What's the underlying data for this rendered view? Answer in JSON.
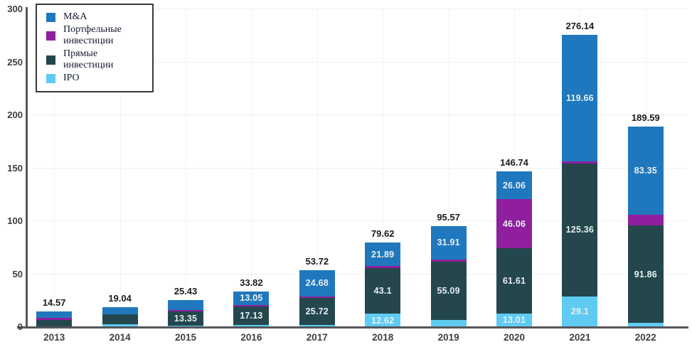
{
  "figure": {
    "background": "#ffffff",
    "axis_color": "#56575a",
    "grid_color": "#efefef",
    "tick_color": "#3d3d3d"
  },
  "legend": {
    "position": "top-left",
    "items": [
      {
        "label": "M&A",
        "color": "#1f78bd"
      },
      {
        "label": "Портфельные инвестиции",
        "color": "#8f1f9e"
      },
      {
        "label": "Прямые инвестиции",
        "color": "#24474e"
      },
      {
        "label": "IPO",
        "color": "#5fcbf3"
      }
    ]
  },
  "chart_data": {
    "type": "bar",
    "subtype": "stacked",
    "categories": [
      "2013",
      "2014",
      "2015",
      "2016",
      "2017",
      "2018",
      "2019",
      "2020",
      "2021",
      "2022"
    ],
    "series": [
      {
        "name": "IPO",
        "color": "#5fcbf3",
        "values": [
          1.0,
          2.4,
          1.3,
          2.14,
          1.72,
          12.62,
          6.5,
          13.01,
          29.1,
          4.0
        ],
        "labels": [
          null,
          null,
          null,
          null,
          null,
          "12.62",
          null,
          "13.01",
          "29.1",
          null
        ]
      },
      {
        "name": "Прямые инвестиции",
        "color": "#24474e",
        "values": [
          6.0,
          9.6,
          13.35,
          17.13,
          25.72,
          43.1,
          55.09,
          61.61,
          125.36,
          91.86
        ],
        "labels": [
          null,
          null,
          "13.35",
          "17.13",
          "25.72",
          "43.1",
          "55.09",
          "61.61",
          "125.36",
          "91.86"
        ]
      },
      {
        "name": "Портфельные инвестиции",
        "color": "#8f1f9e",
        "values": [
          1.6,
          0.3,
          1.3,
          1.5,
          1.6,
          2.01,
          2.07,
          46.06,
          2.02,
          10.38
        ],
        "labels": [
          null,
          null,
          null,
          null,
          null,
          null,
          null,
          "46.06",
          null,
          null
        ]
      },
      {
        "name": "M&A",
        "color": "#1f78bd",
        "values": [
          5.97,
          6.74,
          9.48,
          13.05,
          24.68,
          21.89,
          31.91,
          26.06,
          119.66,
          83.35
        ],
        "labels": [
          null,
          null,
          null,
          "13.05",
          "24.68",
          "21.89",
          "31.91",
          "26.06",
          "119.66",
          "83.35"
        ]
      }
    ],
    "totals": [
      "14.57",
      "19.04",
      "25.43",
      "33.82",
      "53.72",
      "79.62",
      "95.57",
      "146.74",
      "276.14",
      "189.59"
    ],
    "stack_order": "bottom_to_top",
    "ylim": [
      0,
      300
    ],
    "yticks": [
      0,
      50,
      100,
      150,
      200,
      250,
      300
    ],
    "xlabel": "",
    "ylabel": "",
    "title": "",
    "grid": true,
    "legend_position": "top-left"
  }
}
